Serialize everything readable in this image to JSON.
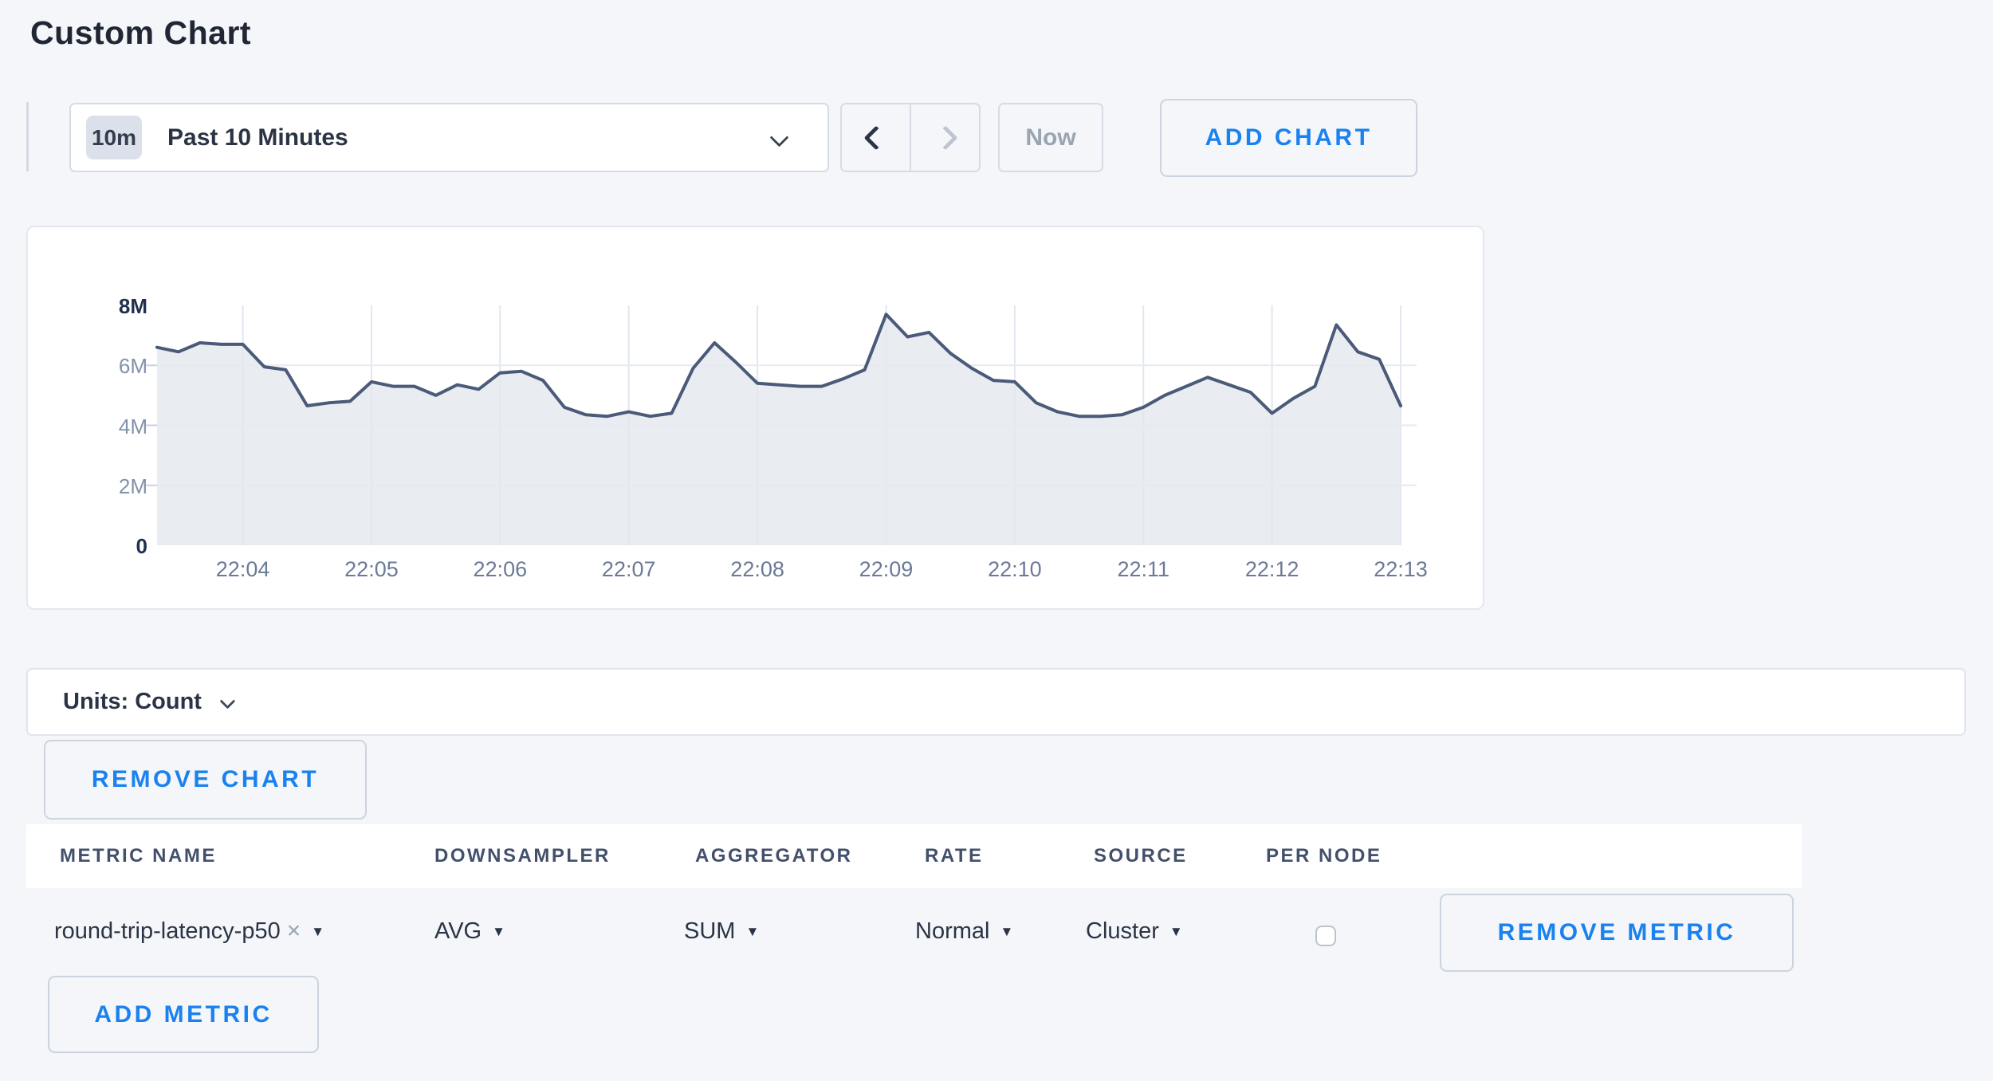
{
  "page": {
    "title": "Custom Chart",
    "background_color": "#f4f6f9",
    "accent_blue": "#1a82f0"
  },
  "toolbar": {
    "time_window_badge": "10m",
    "time_window_label": "Past 10 Minutes",
    "now_label": "Now",
    "add_chart_label": "ADD CHART"
  },
  "chart_data": {
    "type": "area",
    "title": "",
    "xlabel": "",
    "ylabel": "Count",
    "x_start_time": "22:03:20",
    "x_end_time": "22:13:00",
    "x_interval_seconds": 10,
    "x_tick_labels": [
      "22:04",
      "22:05",
      "22:06",
      "22:07",
      "22:08",
      "22:09",
      "22:10",
      "22:11",
      "22:12",
      "22:13"
    ],
    "y_tick_labels": [
      "0",
      "2M",
      "4M",
      "6M",
      "8M"
    ],
    "ylim_millions": [
      0,
      8
    ],
    "grid": true,
    "legend": false,
    "line_color": "#4a5a78",
    "fill_color": "#e9ecf1",
    "series": [
      {
        "name": "round-trip-latency-p50",
        "unit": "Count",
        "values_millions": [
          6.6,
          6.45,
          6.75,
          6.7,
          6.7,
          5.95,
          5.85,
          4.65,
          4.75,
          4.8,
          5.45,
          5.3,
          5.3,
          5.0,
          5.35,
          5.2,
          5.75,
          5.8,
          5.5,
          4.6,
          4.35,
          4.3,
          4.45,
          4.3,
          4.4,
          5.9,
          6.75,
          6.1,
          5.4,
          5.35,
          5.3,
          5.3,
          5.55,
          5.85,
          7.7,
          6.95,
          7.1,
          6.4,
          5.9,
          5.5,
          5.45,
          4.75,
          4.45,
          4.3,
          4.3,
          4.35,
          4.6,
          5.0,
          5.3,
          5.6,
          5.35,
          5.1,
          4.4,
          4.9,
          5.3,
          7.35,
          6.45,
          6.2,
          4.65
        ]
      }
    ]
  },
  "units_bar": {
    "label": "Units: Count"
  },
  "remove_chart_label": "REMOVE CHART",
  "metrics_table": {
    "columns": [
      "METRIC NAME",
      "DOWNSAMPLER",
      "AGGREGATOR",
      "RATE",
      "SOURCE",
      "PER NODE"
    ],
    "rows": [
      {
        "metric_name": "round-trip-latency-p50",
        "remove_tag": "×",
        "downsampler": "AVG",
        "aggregator": "SUM",
        "rate": "Normal",
        "source": "Cluster",
        "per_node_checked": false,
        "remove_label": "REMOVE METRIC"
      }
    ],
    "add_metric_label": "ADD METRIC",
    "caret_glyph": "▼"
  }
}
